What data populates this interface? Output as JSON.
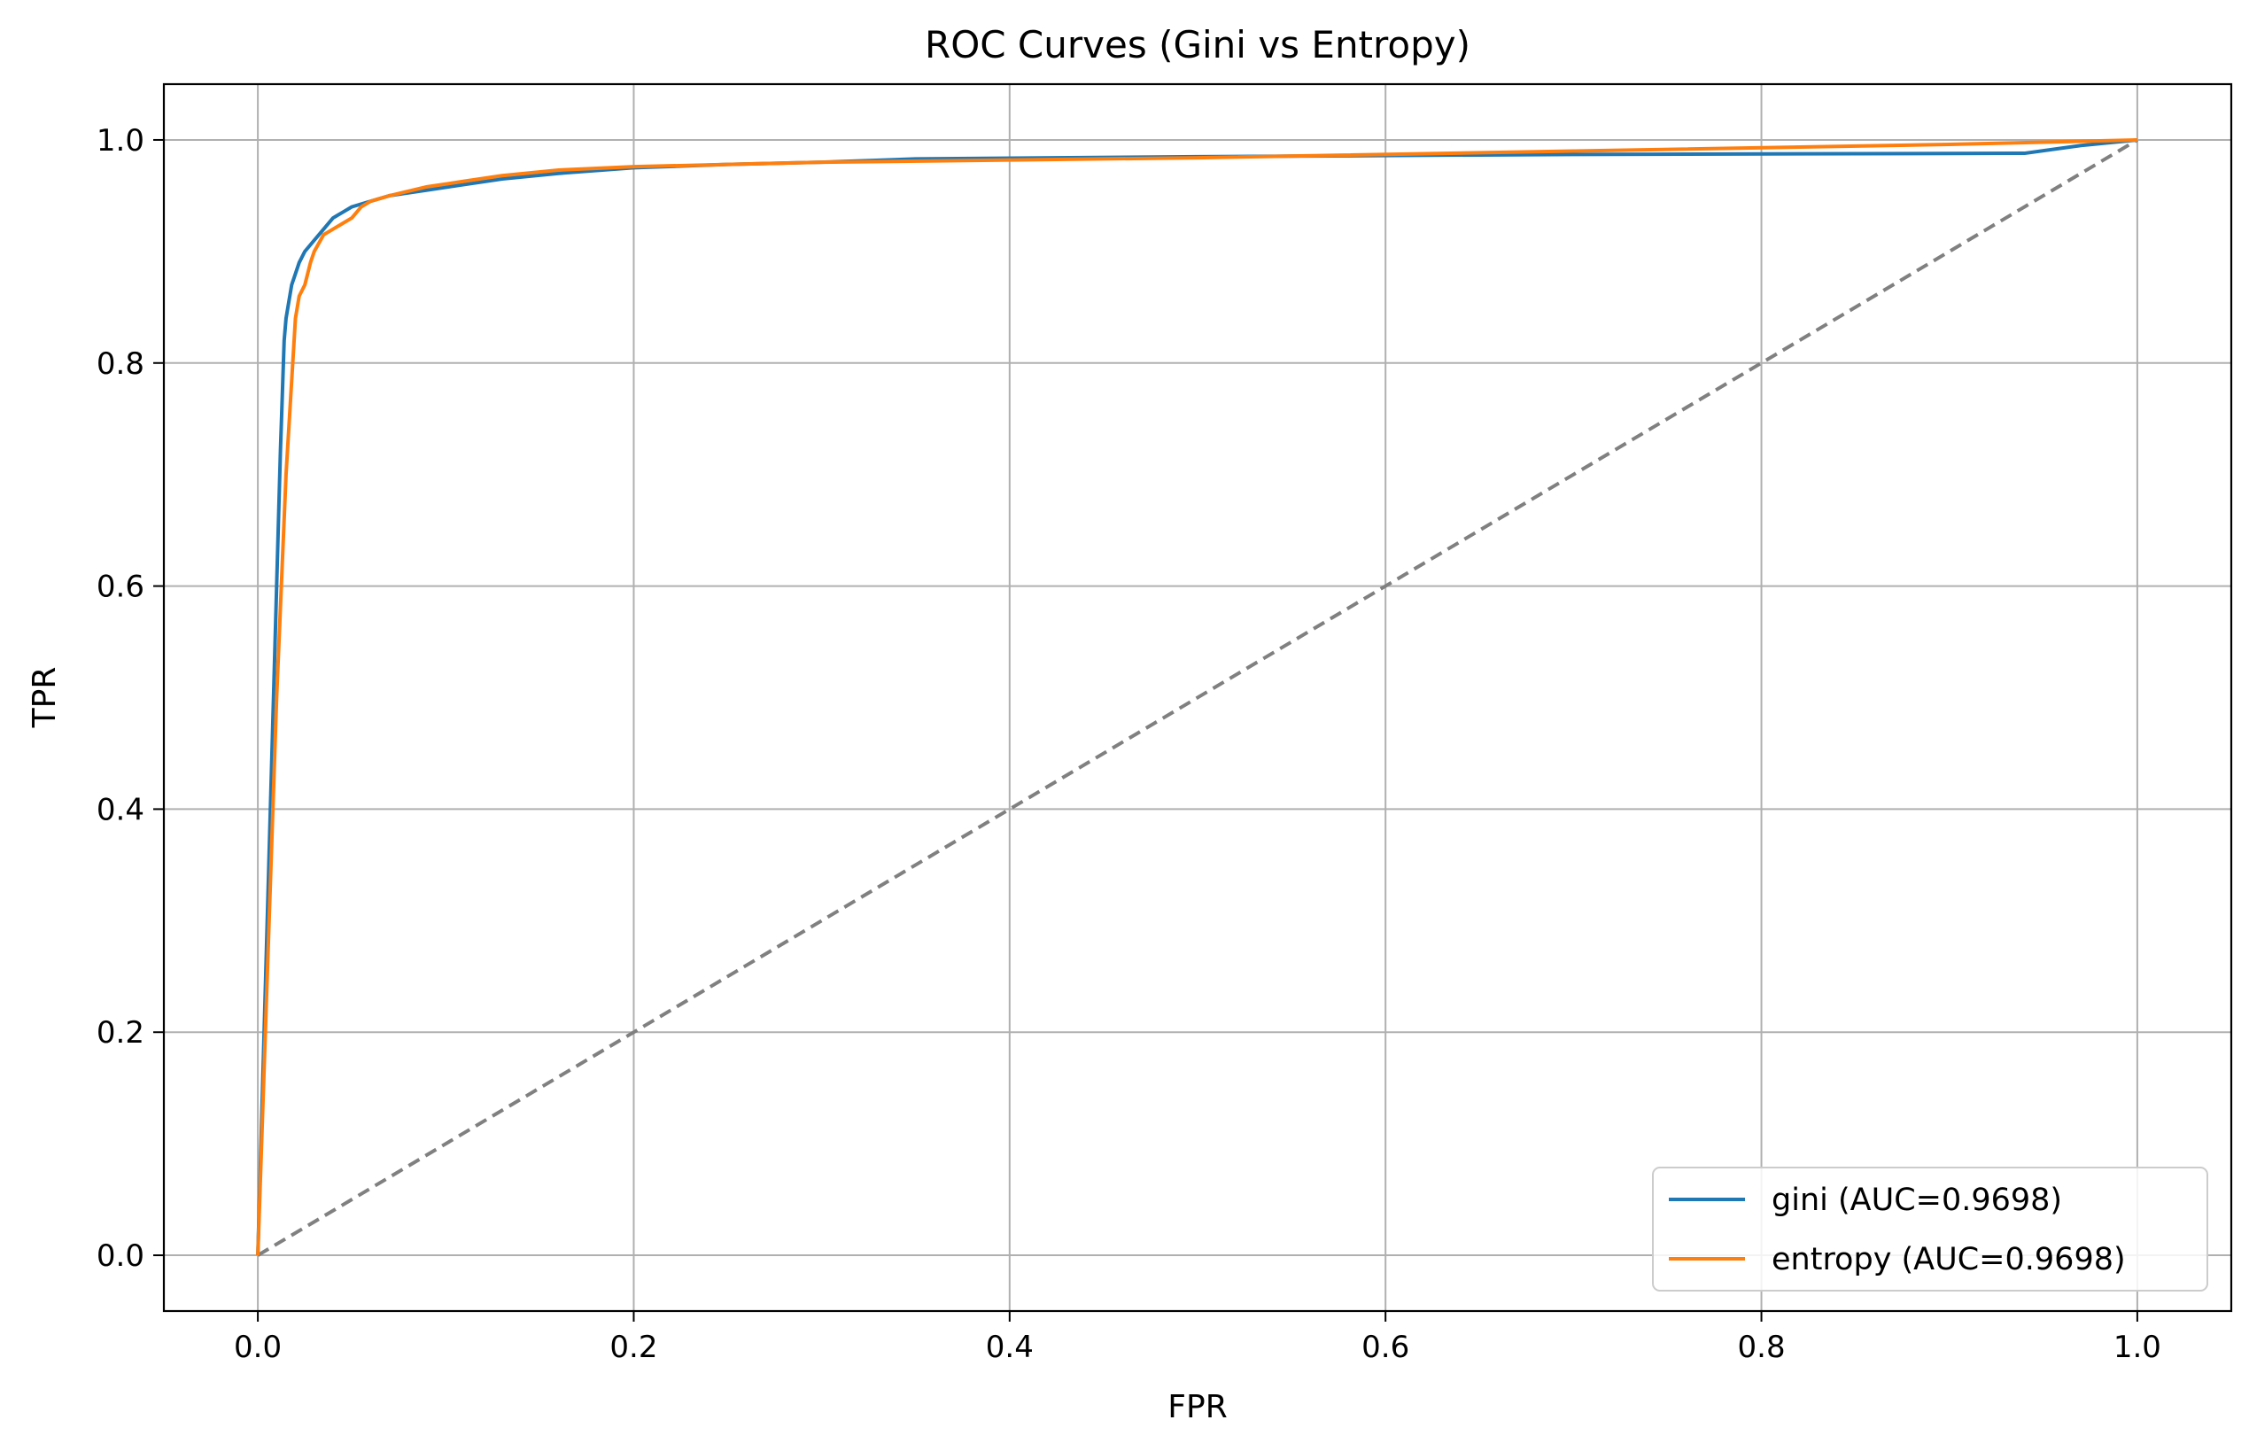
{
  "chart_data": {
    "type": "line",
    "title": "ROC Curves (Gini vs Entropy)",
    "xlabel": "FPR",
    "ylabel": "TPR",
    "xlim": [
      -0.05,
      1.05
    ],
    "ylim": [
      -0.05,
      1.05
    ],
    "xticks": [
      0.0,
      0.2,
      0.4,
      0.6,
      0.8,
      1.0
    ],
    "xtick_labels": [
      "0.0",
      "0.2",
      "0.4",
      "0.6",
      "0.8",
      "1.0"
    ],
    "yticks": [
      0.0,
      0.2,
      0.4,
      0.6,
      0.8,
      1.0
    ],
    "ytick_labels": [
      "0.0",
      "0.2",
      "0.4",
      "0.6",
      "0.8",
      "1.0"
    ],
    "grid": true,
    "legend_position": "lower right",
    "series": [
      {
        "name": "gini (AUC=0.9698)",
        "color": "#1f77b4",
        "x": [
          0.0,
          0.005,
          0.01,
          0.012,
          0.013,
          0.014,
          0.015,
          0.016,
          0.018,
          0.02,
          0.022,
          0.025,
          0.03,
          0.035,
          0.04,
          0.045,
          0.05,
          0.06,
          0.07,
          0.09,
          0.11,
          0.13,
          0.16,
          0.2,
          0.25,
          0.3,
          0.35,
          0.5,
          0.7,
          0.94,
          0.97,
          1.0
        ],
        "y": [
          0.0,
          0.3,
          0.6,
          0.72,
          0.77,
          0.82,
          0.84,
          0.85,
          0.87,
          0.88,
          0.89,
          0.9,
          0.91,
          0.92,
          0.93,
          0.935,
          0.94,
          0.945,
          0.95,
          0.955,
          0.96,
          0.965,
          0.97,
          0.975,
          0.978,
          0.98,
          0.983,
          0.985,
          0.987,
          0.988,
          0.995,
          1.0
        ]
      },
      {
        "name": "entropy (AUC=0.9698)",
        "color": "#ff7f0e",
        "x": [
          0.0,
          0.005,
          0.01,
          0.015,
          0.02,
          0.022,
          0.025,
          0.028,
          0.03,
          0.035,
          0.04,
          0.045,
          0.05,
          0.055,
          0.06,
          0.07,
          0.09,
          0.11,
          0.13,
          0.16,
          0.2,
          0.25,
          0.3,
          0.4,
          0.5,
          0.7,
          0.9,
          1.0
        ],
        "y": [
          0.0,
          0.25,
          0.5,
          0.7,
          0.84,
          0.86,
          0.87,
          0.89,
          0.9,
          0.915,
          0.92,
          0.925,
          0.93,
          0.94,
          0.945,
          0.95,
          0.958,
          0.963,
          0.968,
          0.973,
          0.976,
          0.978,
          0.98,
          0.982,
          0.984,
          0.99,
          0.996,
          1.0
        ]
      },
      {
        "name": "",
        "color": "#808080",
        "dashed": true,
        "x": [
          0.0,
          1.0
        ],
        "y": [
          0.0,
          1.0
        ]
      }
    ]
  }
}
